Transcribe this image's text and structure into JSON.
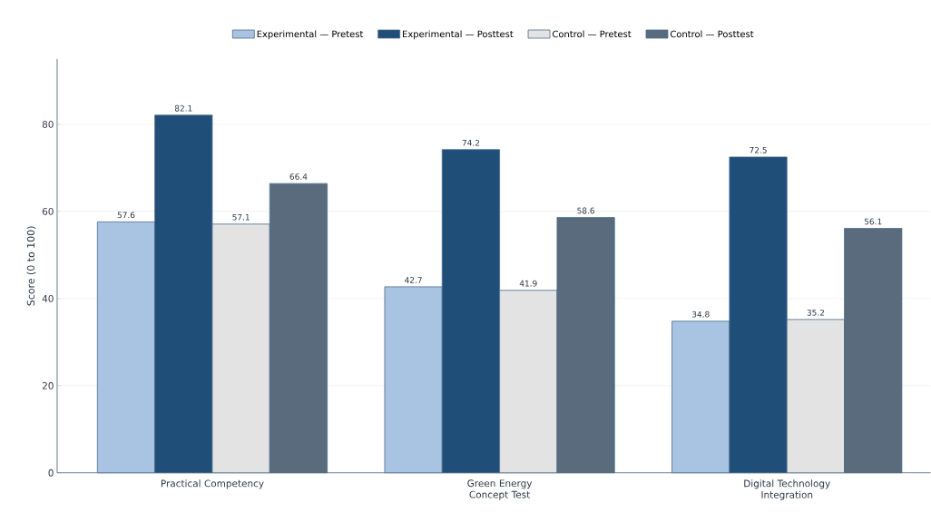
{
  "chart_data": {
    "type": "bar",
    "ylabel": "Score (0 to 100)",
    "categories": [
      "Practical Competency",
      "Green Energy Concept Test",
      "Digital Technology Integration"
    ],
    "series": [
      {
        "name": "Experimental — Pretest",
        "color": "#a9c4e2",
        "values": [
          57.6,
          42.7,
          34.8
        ]
      },
      {
        "name": "Experimental — Posttest",
        "color": "#1f4e79",
        "values": [
          82.1,
          74.2,
          72.5
        ]
      },
      {
        "name": "Control — Pretest",
        "color": "#e3e3e3",
        "values": [
          57.1,
          41.9,
          35.2
        ]
      },
      {
        "name": "Control — Posttest",
        "color": "#5a6b7d",
        "values": [
          66.4,
          58.6,
          56.1
        ]
      }
    ],
    "ylim": [
      0,
      95
    ],
    "yticks": [
      0,
      20,
      40,
      60,
      80
    ],
    "grid": "y",
    "legend": "top",
    "data_labels": true
  }
}
